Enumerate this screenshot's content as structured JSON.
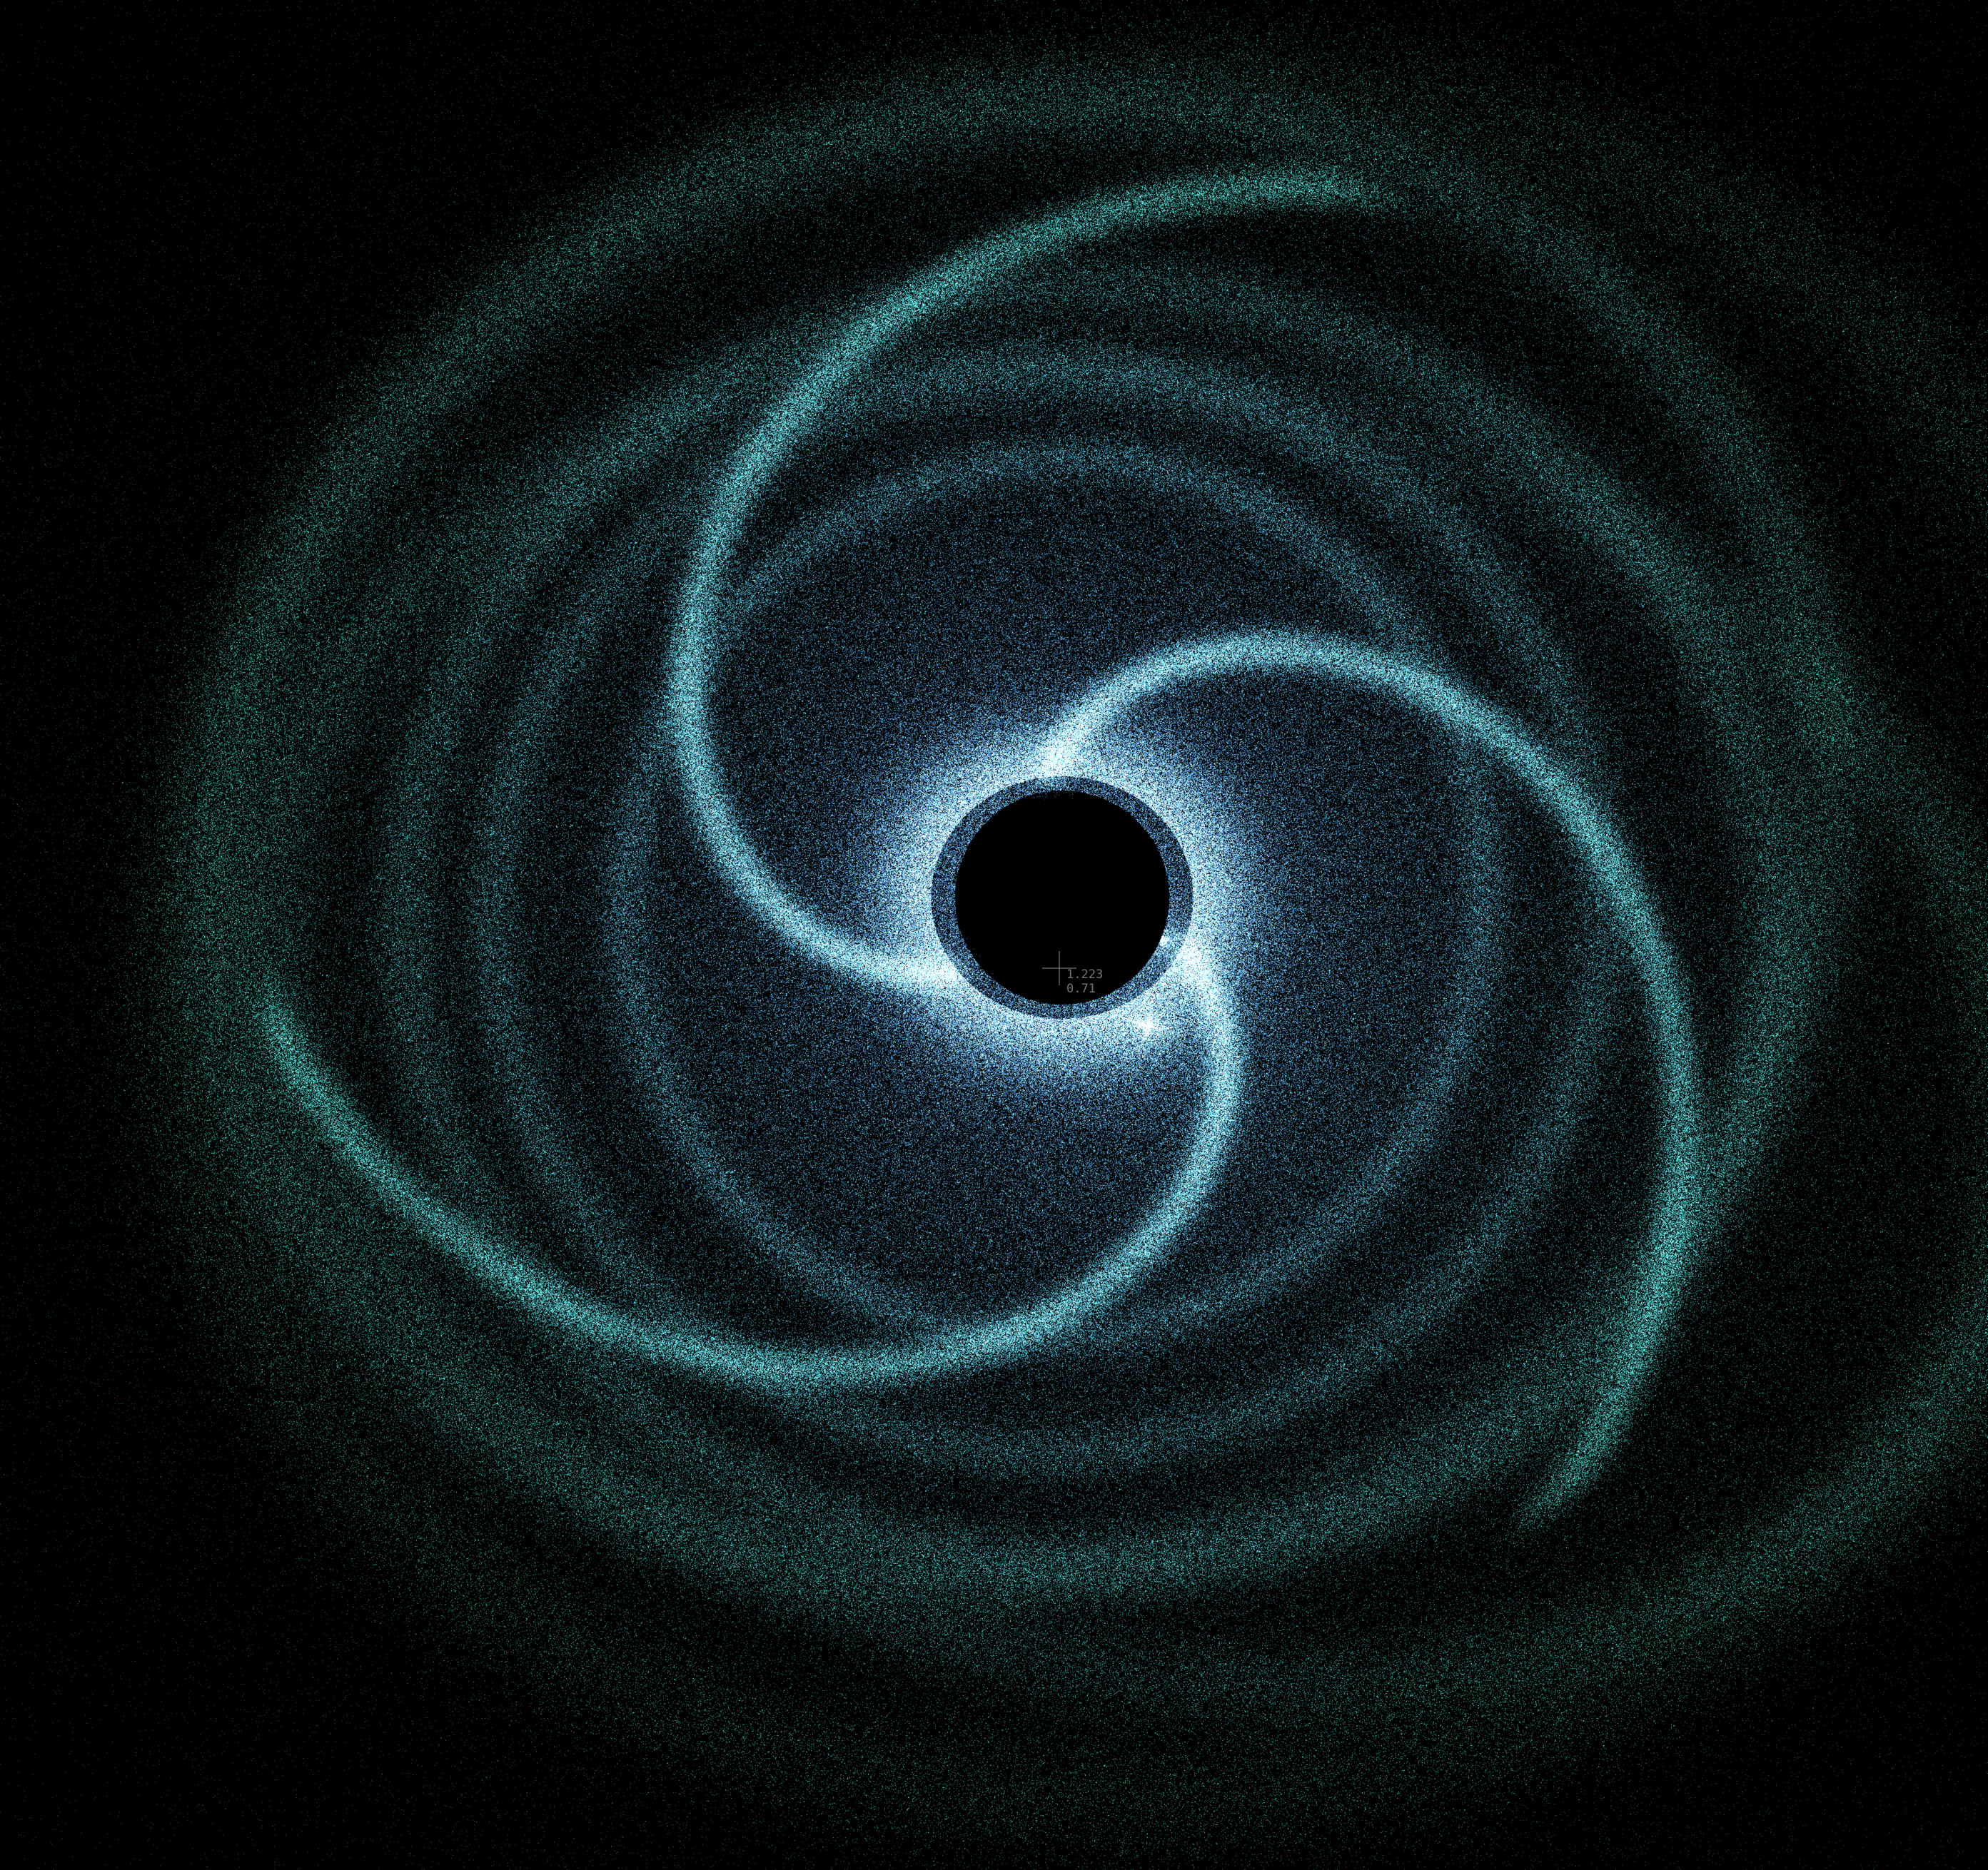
{
  "scene": {
    "description_colors": {
      "background": "#000000",
      "core_color": "#5b9cf0",
      "outer_color": "#3fb8a0"
    }
  },
  "cursor": {
    "icon": "crosshair-icon",
    "readout_line1": "1.223",
    "readout_line2": "0.71"
  }
}
